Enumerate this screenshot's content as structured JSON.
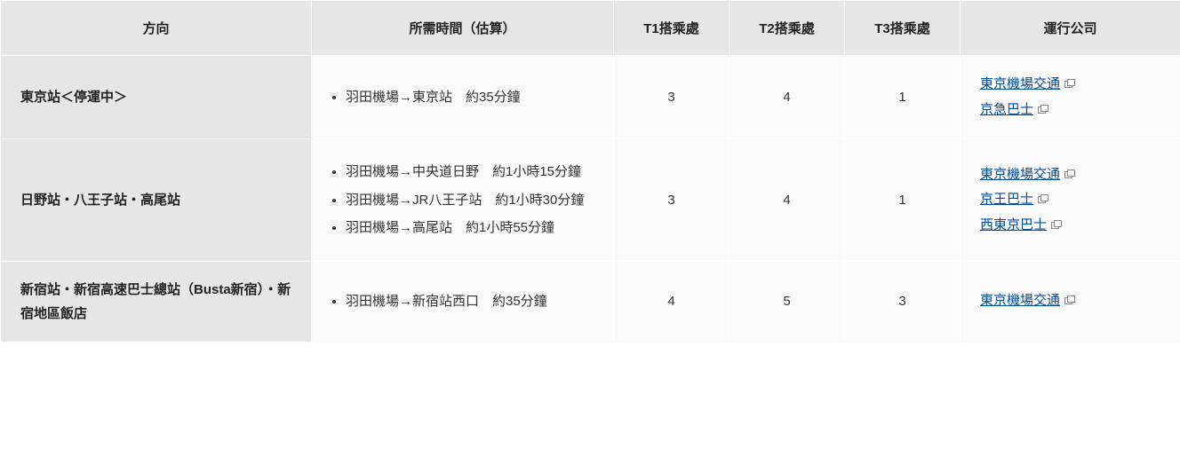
{
  "columns": {
    "direction": "方向",
    "time": "所需時間（估算）",
    "t1": "T1搭乘處",
    "t2": "T2搭乘處",
    "t3": "T3搭乘處",
    "company": "運行公司"
  },
  "col_widths": {
    "direction": 350,
    "time": 340,
    "t1": 130,
    "t2": 130,
    "t3": 130,
    "company": 248
  },
  "rows": [
    {
      "direction": "東京站＜停運中＞",
      "times": [
        "羽田機場→東京站　約35分鐘"
      ],
      "t1": "3",
      "t2": "4",
      "t3": "1",
      "companies": [
        "東京機場交通",
        "京急巴士"
      ]
    },
    {
      "direction": "日野站・八王子站・高尾站",
      "times": [
        "羽田機場→中央道日野　約1小時15分鐘",
        "羽田機場→JR八王子站　約1小時30分鐘",
        "羽田機場→高尾站　約1小時55分鐘"
      ],
      "t1": "3",
      "t2": "4",
      "t3": "1",
      "companies": [
        "東京機場交通",
        "京王巴士",
        "西東京巴士"
      ]
    },
    {
      "direction": "新宿站・新宿高速巴士總站（Busta新宿）・新宿地區飯店",
      "times": [
        "羽田機場→新宿站西口　約35分鐘"
      ],
      "t1": "4",
      "t2": "5",
      "t3": "3",
      "companies": [
        "東京機場交通"
      ]
    }
  ],
  "link_color": "#004ea2",
  "icon_color": "#888888"
}
